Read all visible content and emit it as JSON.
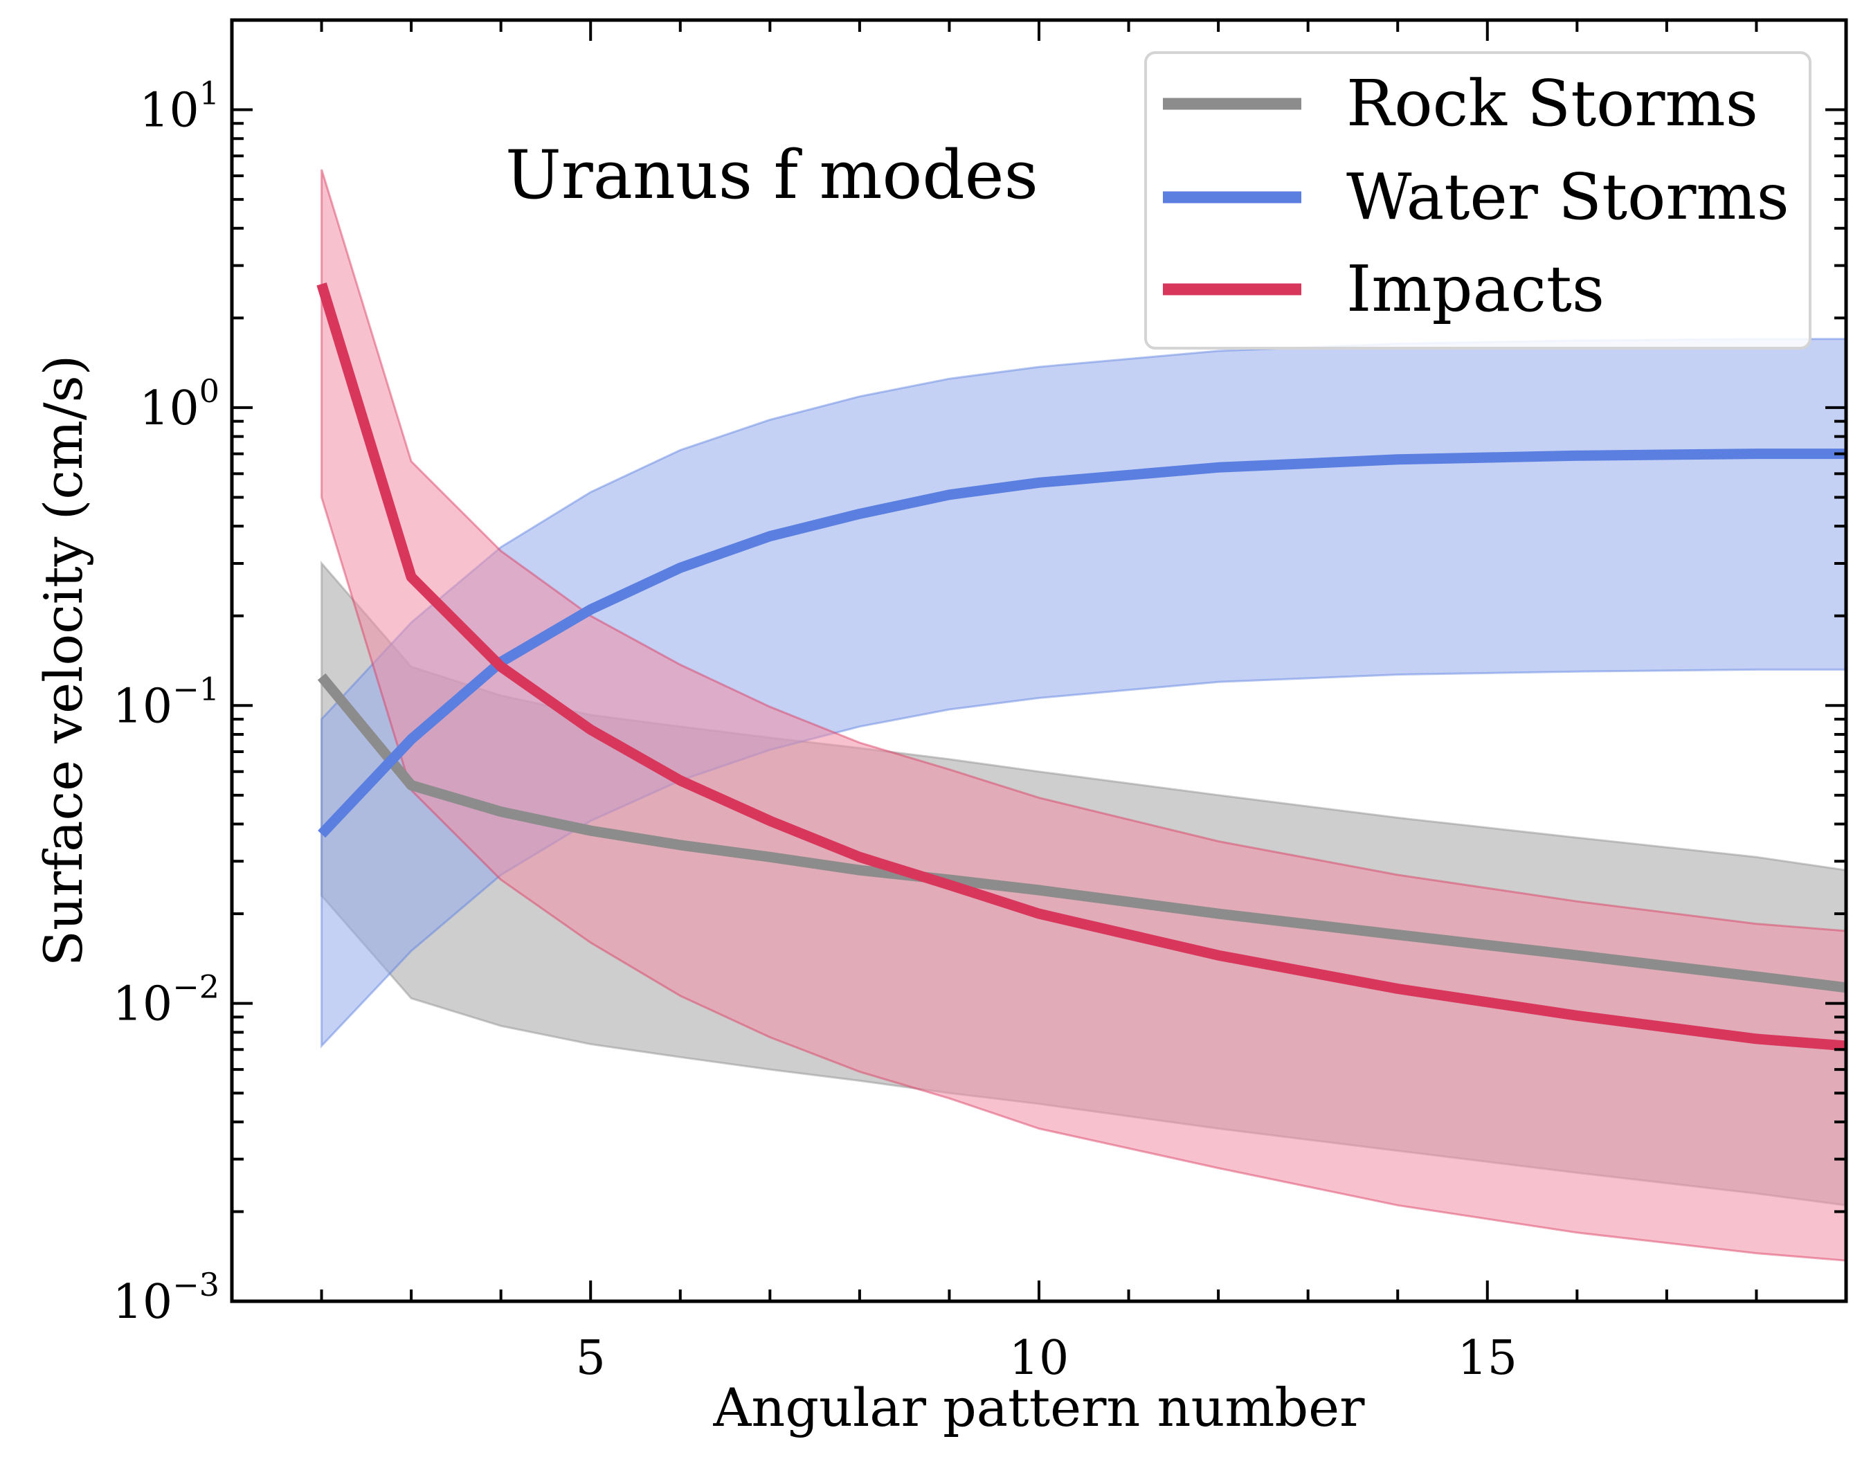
{
  "chart_data": {
    "type": "line",
    "annotation": "Uranus f modes",
    "xlabel": "Angular pattern number",
    "ylabel": "Surface velocity (cm/s)",
    "xscale": "linear",
    "yscale": "log",
    "xlim": [
      1,
      19
    ],
    "ylim": [
      0.001,
      20
    ],
    "xticks": [
      {
        "value": 5,
        "label": "5"
      },
      {
        "value": 10,
        "label": "10"
      },
      {
        "value": 15,
        "label": "15"
      }
    ],
    "yticks": [
      {
        "value": 0.001,
        "base": "10",
        "exp": "−3"
      },
      {
        "value": 0.01,
        "base": "10",
        "exp": "−2"
      },
      {
        "value": 0.1,
        "base": "10",
        "exp": "−1"
      },
      {
        "value": 1,
        "base": "10",
        "exp": "0"
      },
      {
        "value": 10,
        "base": "10",
        "exp": "1"
      }
    ],
    "grid": false,
    "legend_position": "top-right",
    "x": [
      2,
      3,
      4,
      5,
      6,
      7,
      8,
      9,
      10,
      12,
      14,
      16,
      18,
      19
    ],
    "series": [
      {
        "name": "Rock Storms",
        "color": "#8c8c8c",
        "band_color": "#a6a6a6",
        "y": [
          0.125,
          0.054,
          0.044,
          0.038,
          0.034,
          0.031,
          0.028,
          0.026,
          0.024,
          0.02,
          0.017,
          0.0145,
          0.0123,
          0.0113
        ],
        "y_lower": [
          0.023,
          0.0104,
          0.0084,
          0.0073,
          0.0066,
          0.006,
          0.0055,
          0.005,
          0.0046,
          0.0038,
          0.0032,
          0.0027,
          0.0023,
          0.0021
        ],
        "y_upper": [
          0.3,
          0.135,
          0.108,
          0.093,
          0.085,
          0.078,
          0.072,
          0.066,
          0.06,
          0.05,
          0.042,
          0.036,
          0.031,
          0.028
        ]
      },
      {
        "name": "Water Storms",
        "color": "#5b7fe0",
        "band_color": "#94aceb",
        "y": [
          0.037,
          0.077,
          0.14,
          0.21,
          0.29,
          0.37,
          0.44,
          0.51,
          0.56,
          0.63,
          0.67,
          0.69,
          0.7,
          0.7
        ],
        "y_lower": [
          0.0072,
          0.015,
          0.027,
          0.041,
          0.056,
          0.071,
          0.085,
          0.097,
          0.106,
          0.12,
          0.127,
          0.13,
          0.132,
          0.132
        ],
        "y_upper": [
          0.09,
          0.19,
          0.34,
          0.52,
          0.72,
          0.91,
          1.09,
          1.25,
          1.37,
          1.55,
          1.64,
          1.68,
          1.7,
          1.7
        ]
      },
      {
        "name": "Impacts",
        "color": "#d9365c",
        "band_color": "#f08ea5",
        "y": [
          2.6,
          0.27,
          0.135,
          0.083,
          0.056,
          0.041,
          0.031,
          0.025,
          0.02,
          0.0145,
          0.0112,
          0.0091,
          0.0076,
          0.0072
        ],
        "y_lower": [
          0.5,
          0.052,
          0.026,
          0.016,
          0.0106,
          0.0077,
          0.0059,
          0.0048,
          0.0038,
          0.0028,
          0.0021,
          0.0017,
          0.00145,
          0.00137
        ],
        "y_upper": [
          6.3,
          0.66,
          0.33,
          0.2,
          0.137,
          0.099,
          0.075,
          0.061,
          0.049,
          0.035,
          0.027,
          0.022,
          0.0185,
          0.0175
        ]
      }
    ]
  }
}
